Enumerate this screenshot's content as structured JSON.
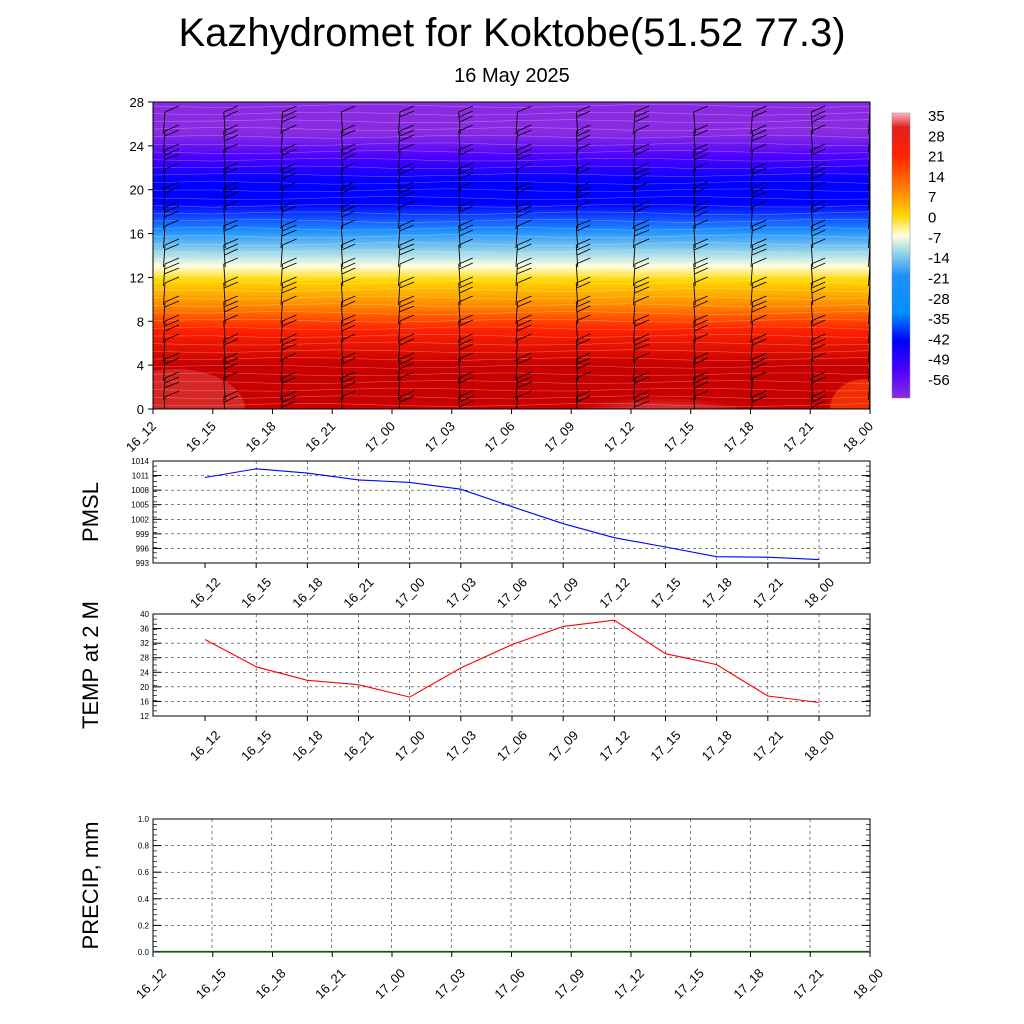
{
  "title": "Kazhydromet for Koktobe(51.52 77.3)",
  "subtitle": "16 May 2025",
  "time_labels": [
    "16_12",
    "16_15",
    "16_18",
    "16_21",
    "17_00",
    "17_03",
    "17_06",
    "17_09",
    "17_12",
    "17_15",
    "17_18",
    "17_21",
    "18_00"
  ],
  "colors": {
    "pmsl_line": "#0000ff",
    "temp_line": "#ff0000",
    "precip_line": "#006400",
    "palette": [
      "#8a2be2",
      "#4b00ff",
      "#0000ff",
      "#1e90ff",
      "#87ceeb",
      "#ffffe0",
      "#ffd700",
      "#ff8c00",
      "#ff2200",
      "#c80000",
      "#ffb6c1"
    ]
  },
  "chart_data": [
    {
      "type": "heatmap",
      "ylim": [
        0,
        28
      ],
      "yticks": [
        0,
        4,
        8,
        12,
        16,
        20,
        24,
        28
      ],
      "colorbar": {
        "labels": [
          "35",
          "28",
          "21",
          "14",
          "7",
          "0",
          "-7",
          "-14",
          "-21",
          "-28",
          "-35",
          "-42",
          "-49",
          "-56"
        ]
      }
    },
    {
      "type": "line",
      "ylabel": "PMSL",
      "ylim": [
        993,
        1014
      ],
      "yticks": [
        993,
        996,
        999,
        1002,
        1005,
        1008,
        1011,
        1014
      ],
      "values": [
        1010.6,
        1012.4,
        1011.5,
        1010.1,
        1009.6,
        1008.2,
        1004.6,
        1001.1,
        998.2,
        996.3,
        994.3,
        994.2,
        993.7
      ]
    },
    {
      "type": "line",
      "ylabel": "TEMP at 2 M",
      "ylim": [
        12,
        40
      ],
      "yticks": [
        12,
        16,
        20,
        24,
        28,
        32,
        36,
        40
      ],
      "values": [
        33,
        25.5,
        21.8,
        20.6,
        17.2,
        25.2,
        31.6,
        36.6,
        38.3,
        29.1,
        26.1,
        17.5,
        15.7
      ]
    },
    {
      "type": "line",
      "ylabel": "PRECIP, mm",
      "ylim": [
        0,
        1
      ],
      "yticks": [
        "0.0",
        "0.2",
        "0.4",
        "0.6",
        "0.8",
        "1.0"
      ],
      "values": [
        0,
        0,
        0,
        0,
        0,
        0,
        0,
        0,
        0,
        0,
        0,
        0
      ]
    }
  ]
}
